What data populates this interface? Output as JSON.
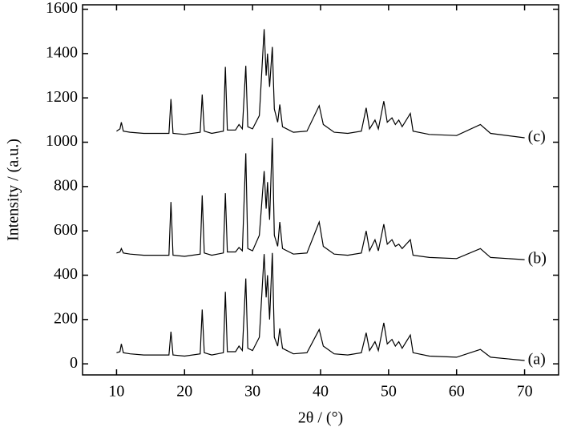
{
  "chart_data": {
    "type": "line",
    "x_label": "2θ / (°)",
    "y_label": "Intensity / (a.u.)",
    "xlim": [
      5,
      75
    ],
    "ylim": [
      -50,
      1620
    ],
    "xticks": [
      10,
      20,
      30,
      40,
      50,
      60,
      70
    ],
    "yticks": [
      0,
      200,
      400,
      600,
      800,
      1000,
      1200,
      1400,
      1600
    ],
    "x": [
      10,
      10.5,
      10.7,
      11,
      12,
      14,
      16,
      17.7,
      18,
      18.3,
      20,
      22.3,
      22.6,
      22.9,
      24,
      25.7,
      26,
      26.3,
      27.5,
      28,
      28.5,
      29,
      29.3,
      30,
      31,
      31.7,
      32,
      32.2,
      32.5,
      32.9,
      33.2,
      33.7,
      34,
      34.4,
      36,
      38,
      39.8,
      40.4,
      42,
      44,
      46,
      46.7,
      47.2,
      48,
      48.5,
      49.3,
      49.8,
      50.5,
      51,
      51.5,
      52,
      53.2,
      53.6,
      56,
      60,
      63.5,
      65,
      70
    ],
    "series": [
      {
        "name": "(a)",
        "color": "#000000",
        "values": [
          50,
          55,
          90,
          50,
          45,
          40,
          40,
          40,
          145,
          40,
          35,
          45,
          245,
          50,
          40,
          50,
          325,
          55,
          55,
          80,
          60,
          385,
          70,
          60,
          120,
          495,
          300,
          400,
          200,
          500,
          120,
          80,
          160,
          70,
          45,
          50,
          155,
          80,
          45,
          40,
          50,
          140,
          60,
          100,
          60,
          185,
          90,
          110,
          80,
          100,
          70,
          130,
          50,
          35,
          30,
          65,
          30,
          15
        ]
      },
      {
        "name": "(b)",
        "color": "#000000",
        "values": [
          500,
          505,
          520,
          500,
          495,
          490,
          490,
          490,
          730,
          490,
          485,
          495,
          760,
          500,
          490,
          500,
          770,
          505,
          505,
          525,
          510,
          950,
          520,
          510,
          580,
          870,
          700,
          820,
          650,
          1020,
          580,
          530,
          640,
          520,
          495,
          500,
          640,
          530,
          495,
          490,
          500,
          600,
          510,
          560,
          510,
          630,
          540,
          560,
          530,
          540,
          520,
          560,
          490,
          480,
          475,
          520,
          480,
          470
        ]
      },
      {
        "name": "(c)",
        "color": "#000000",
        "values": [
          1050,
          1060,
          1090,
          1050,
          1045,
          1040,
          1040,
          1040,
          1195,
          1040,
          1035,
          1045,
          1215,
          1050,
          1040,
          1050,
          1340,
          1055,
          1055,
          1080,
          1060,
          1345,
          1070,
          1060,
          1120,
          1510,
          1300,
          1400,
          1250,
          1430,
          1150,
          1090,
          1170,
          1070,
          1045,
          1050,
          1165,
          1080,
          1045,
          1040,
          1050,
          1155,
          1060,
          1100,
          1060,
          1185,
          1090,
          1110,
          1080,
          1100,
          1070,
          1130,
          1050,
          1035,
          1030,
          1080,
          1040,
          1020
        ]
      }
    ]
  }
}
